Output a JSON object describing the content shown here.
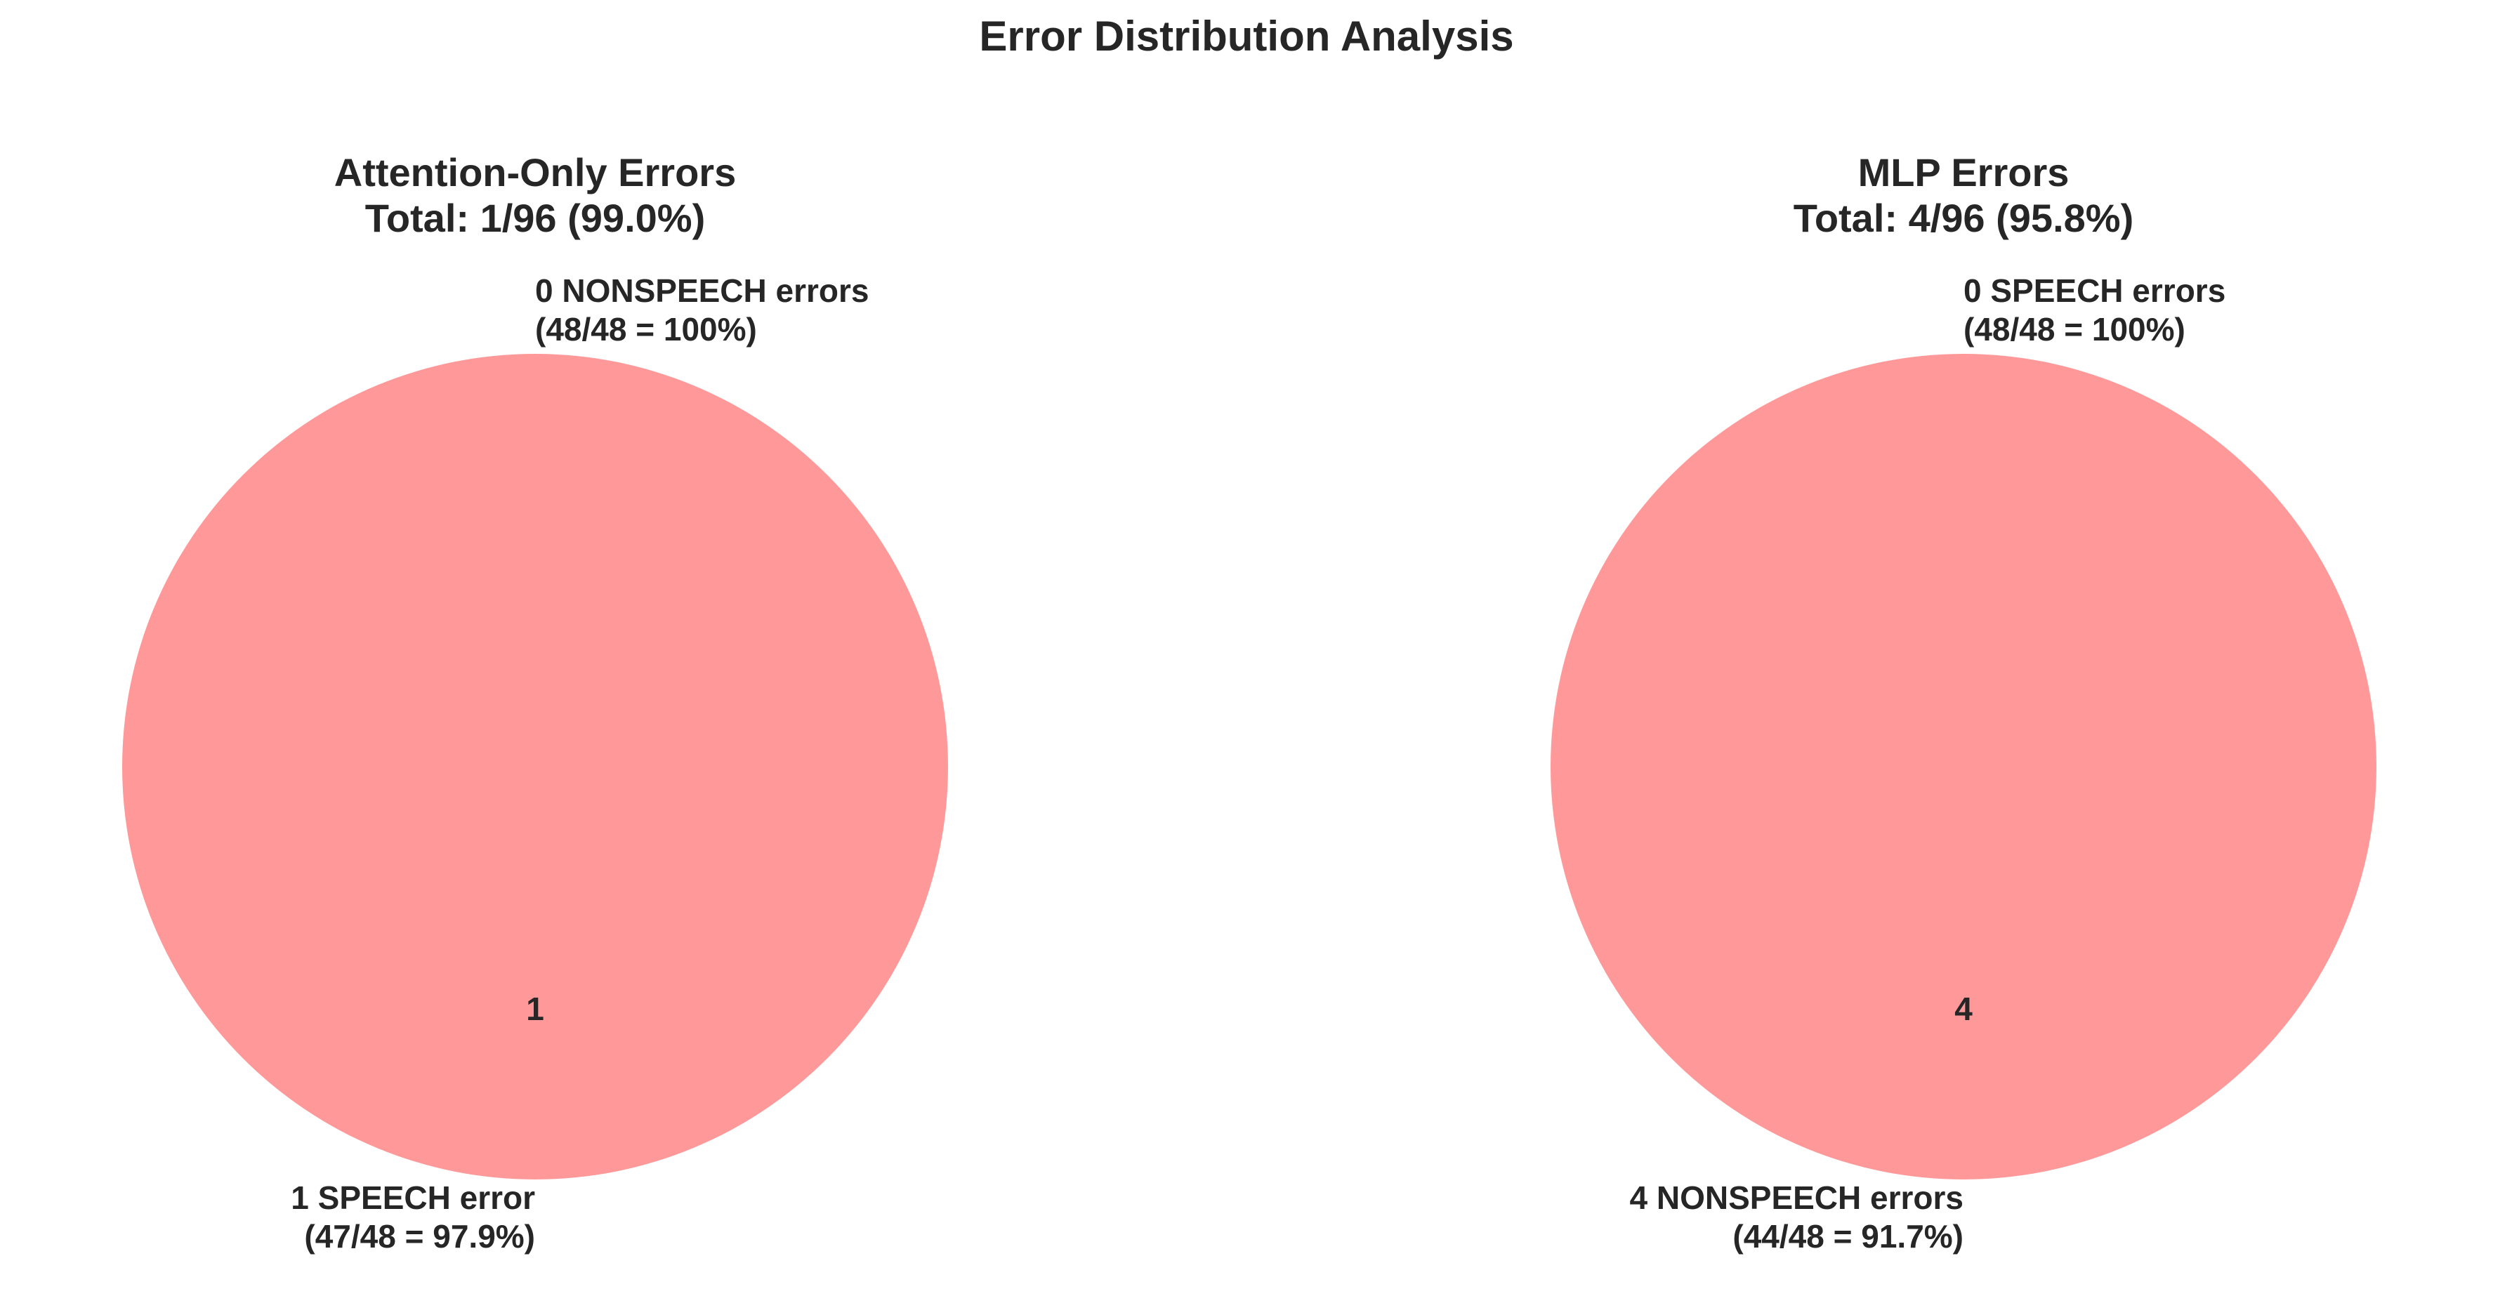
{
  "figure": {
    "title": "Error Distribution Analysis"
  },
  "chart_data": [
    {
      "type": "pie",
      "title_line1": "Attention-Only Errors",
      "title_line2": "Total: 1/96 (99.0%)",
      "slices": [
        {
          "label_line1": "0 NONSPEECH errors",
          "label_line2": "(48/48 = 100%)",
          "value": 0,
          "autopct": ""
        },
        {
          "label_line1": "1 SPEECH error",
          "label_line2": "(47/48 = 97.9%)",
          "value": 1,
          "autopct": "1"
        }
      ],
      "colors": [
        "#ff9999",
        "#ff9999"
      ]
    },
    {
      "type": "pie",
      "title_line1": "MLP Errors",
      "title_line2": "Total: 4/96 (95.8%)",
      "slices": [
        {
          "label_line1": "0 SPEECH errors",
          "label_line2": "(48/48 = 100%)",
          "value": 0,
          "autopct": ""
        },
        {
          "label_line1": "4 NONSPEECH errors",
          "label_line2": "(44/48 = 91.7%)",
          "value": 4,
          "autopct": "4"
        }
      ],
      "colors": [
        "#ff9999",
        "#ff9999"
      ]
    }
  ]
}
